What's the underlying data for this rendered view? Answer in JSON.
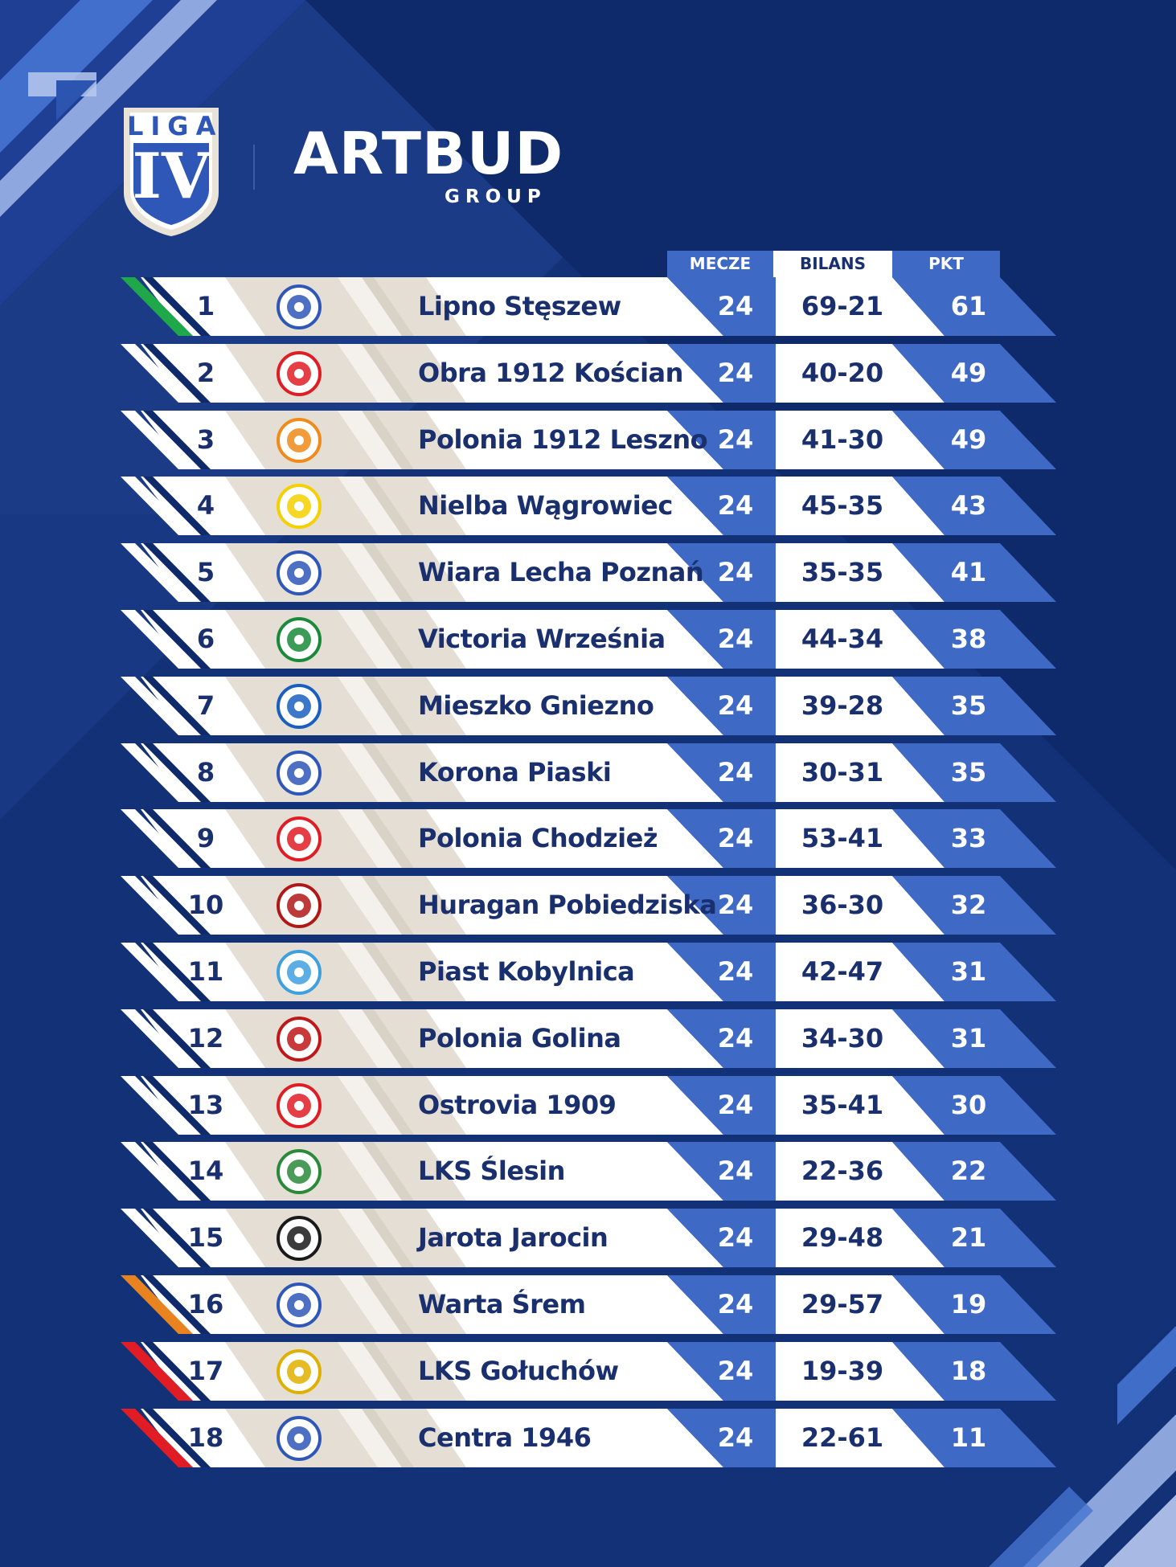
{
  "header": {
    "league_badge_word": "LIGA",
    "league_badge_numeral": "IV",
    "sponsor_name": "ARTBUD",
    "sponsor_subtitle": "GROUP"
  },
  "columns": {
    "matches": "MECZE",
    "balance": "BILANS",
    "points": "PKT"
  },
  "colors": {
    "background": "#0f2a6b",
    "accent_blue": "#3e69c4",
    "text_navy": "#1a2f6e",
    "promotion": "#1fa84a",
    "playoff": "#e8831f",
    "relegation": "#e01c24"
  },
  "standings": [
    {
      "pos": "1",
      "team": "Lipno Stęszew",
      "matches": "24",
      "balance": "69-21",
      "points": "61",
      "zone": "promotion",
      "crest_icon": "lipno-crest-icon"
    },
    {
      "pos": "2",
      "team": "Obra 1912 Kościan",
      "matches": "24",
      "balance": "40-20",
      "points": "49",
      "zone": "none",
      "crest_icon": "obra-crest-icon"
    },
    {
      "pos": "3",
      "team": "Polonia 1912 Leszno",
      "matches": "24",
      "balance": "41-30",
      "points": "49",
      "zone": "none",
      "crest_icon": "polonia-leszno-crest-icon"
    },
    {
      "pos": "4",
      "team": "Nielba Wągrowiec",
      "matches": "24",
      "balance": "45-35",
      "points": "43",
      "zone": "none",
      "crest_icon": "nielba-crest-icon"
    },
    {
      "pos": "5",
      "team": "Wiara Lecha Poznań",
      "matches": "24",
      "balance": "35-35",
      "points": "41",
      "zone": "none",
      "crest_icon": "lech-crest-icon"
    },
    {
      "pos": "6",
      "team": "Victoria Września",
      "matches": "24",
      "balance": "44-34",
      "points": "38",
      "zone": "none",
      "crest_icon": "victoria-crest-icon"
    },
    {
      "pos": "7",
      "team": "Mieszko Gniezno",
      "matches": "24",
      "balance": "39-28",
      "points": "35",
      "zone": "none",
      "crest_icon": "mieszko-crest-icon"
    },
    {
      "pos": "8",
      "team": "Korona Piaski",
      "matches": "24",
      "balance": "30-31",
      "points": "35",
      "zone": "none",
      "crest_icon": "korona-crest-icon"
    },
    {
      "pos": "9",
      "team": "Polonia Chodzież",
      "matches": "24",
      "balance": "53-41",
      "points": "33",
      "zone": "none",
      "crest_icon": "polonia-chodziez-crest-icon"
    },
    {
      "pos": "10",
      "team": "Huragan Pobiedziska",
      "matches": "24",
      "balance": "36-30",
      "points": "32",
      "zone": "none",
      "crest_icon": "huragan-crest-icon"
    },
    {
      "pos": "11",
      "team": "Piast Kobylnica",
      "matches": "24",
      "balance": "42-47",
      "points": "31",
      "zone": "none",
      "crest_icon": "piast-crest-icon"
    },
    {
      "pos": "12",
      "team": "Polonia Golina",
      "matches": "24",
      "balance": "34-30",
      "points": "31",
      "zone": "none",
      "crest_icon": "polonia-golina-crest-icon"
    },
    {
      "pos": "13",
      "team": "Ostrovia 1909",
      "matches": "24",
      "balance": "35-41",
      "points": "30",
      "zone": "none",
      "crest_icon": "ostrovia-crest-icon"
    },
    {
      "pos": "14",
      "team": "LKS Ślesin",
      "matches": "24",
      "balance": "22-36",
      "points": "22",
      "zone": "none",
      "crest_icon": "slesin-crest-icon"
    },
    {
      "pos": "15",
      "team": "Jarota Jarocin",
      "matches": "24",
      "balance": "29-48",
      "points": "21",
      "zone": "none",
      "crest_icon": "jarota-crest-icon"
    },
    {
      "pos": "16",
      "team": "Warta Śrem",
      "matches": "24",
      "balance": "29-57",
      "points": "19",
      "zone": "playoff",
      "crest_icon": "warta-crest-icon"
    },
    {
      "pos": "17",
      "team": "LKS Gołuchów",
      "matches": "24",
      "balance": "19-39",
      "points": "18",
      "zone": "relegation",
      "crest_icon": "goluchow-crest-icon"
    },
    {
      "pos": "18",
      "team": "Centra 1946",
      "matches": "24",
      "balance": "22-61",
      "points": "11",
      "zone": "relegation",
      "crest_icon": "centra-crest-icon"
    }
  ]
}
